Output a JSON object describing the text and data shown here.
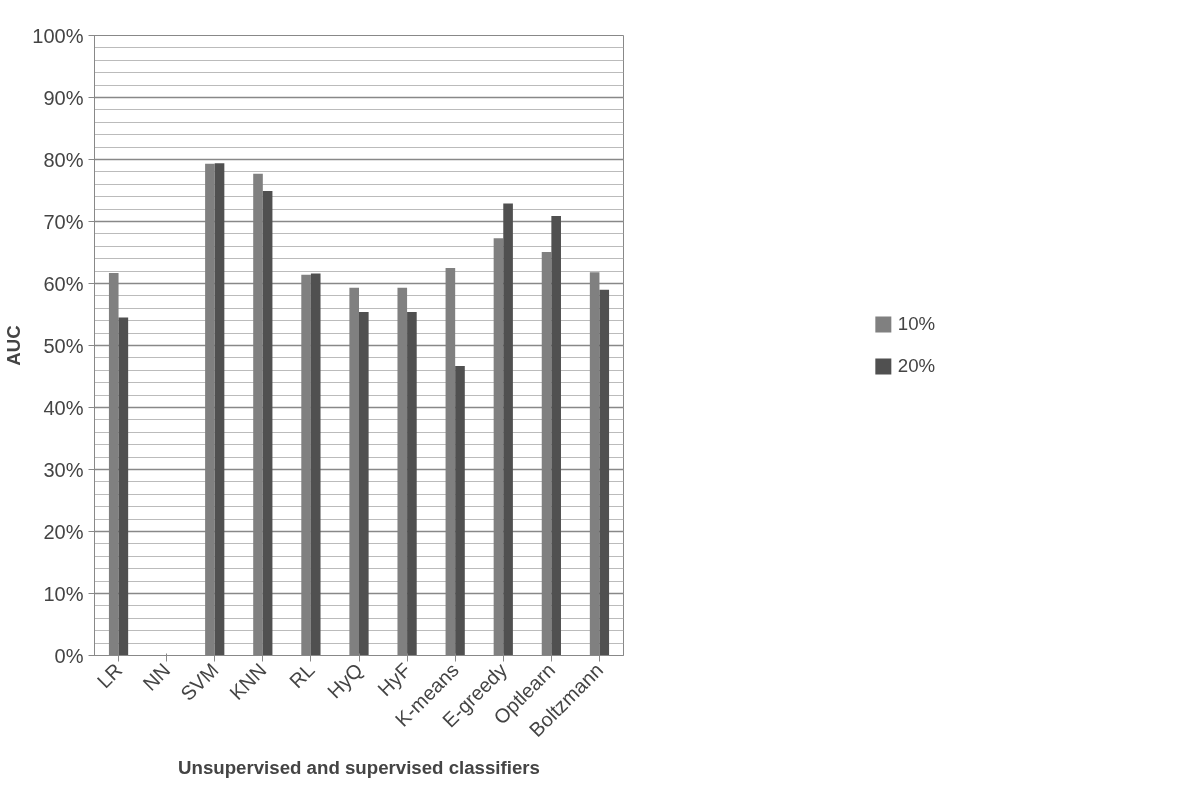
{
  "chart_data": {
    "type": "bar",
    "xlabel": "Unsupervised and supervised classifiers",
    "ylabel": "AUC",
    "categories": [
      "LR",
      "NN",
      "SVM",
      "KNN",
      "RL",
      "HyQ",
      "HyF",
      "K-means",
      "E-greedy",
      "Optlearn",
      "Boltzmann"
    ],
    "series": [
      {
        "name": "10%",
        "color": "#808080",
        "values": [
          61.7,
          null,
          79.3,
          77.7,
          61.4,
          59.3,
          59.3,
          62.5,
          67.3,
          65.1,
          61.8
        ]
      },
      {
        "name": "20%",
        "color": "#505050",
        "values": [
          54.5,
          null,
          79.4,
          74.9,
          61.6,
          55.4,
          55.4,
          46.7,
          72.9,
          70.9,
          59.0
        ]
      }
    ],
    "ylim": [
      0,
      100
    ],
    "yticks": [
      {
        "value": 0,
        "label": "0%"
      },
      {
        "value": 10,
        "label": "10%"
      },
      {
        "value": 20,
        "label": "20%"
      },
      {
        "value": 30,
        "label": "30%"
      },
      {
        "value": 40,
        "label": "40%"
      },
      {
        "value": 50,
        "label": "50%"
      },
      {
        "value": 60,
        "label": "60%"
      },
      {
        "value": 70,
        "label": "70%"
      },
      {
        "value": 80,
        "label": "80%"
      },
      {
        "value": 90,
        "label": "90%"
      },
      {
        "value": 100,
        "label": "100%"
      }
    ],
    "grid": "y",
    "legend": "right"
  }
}
